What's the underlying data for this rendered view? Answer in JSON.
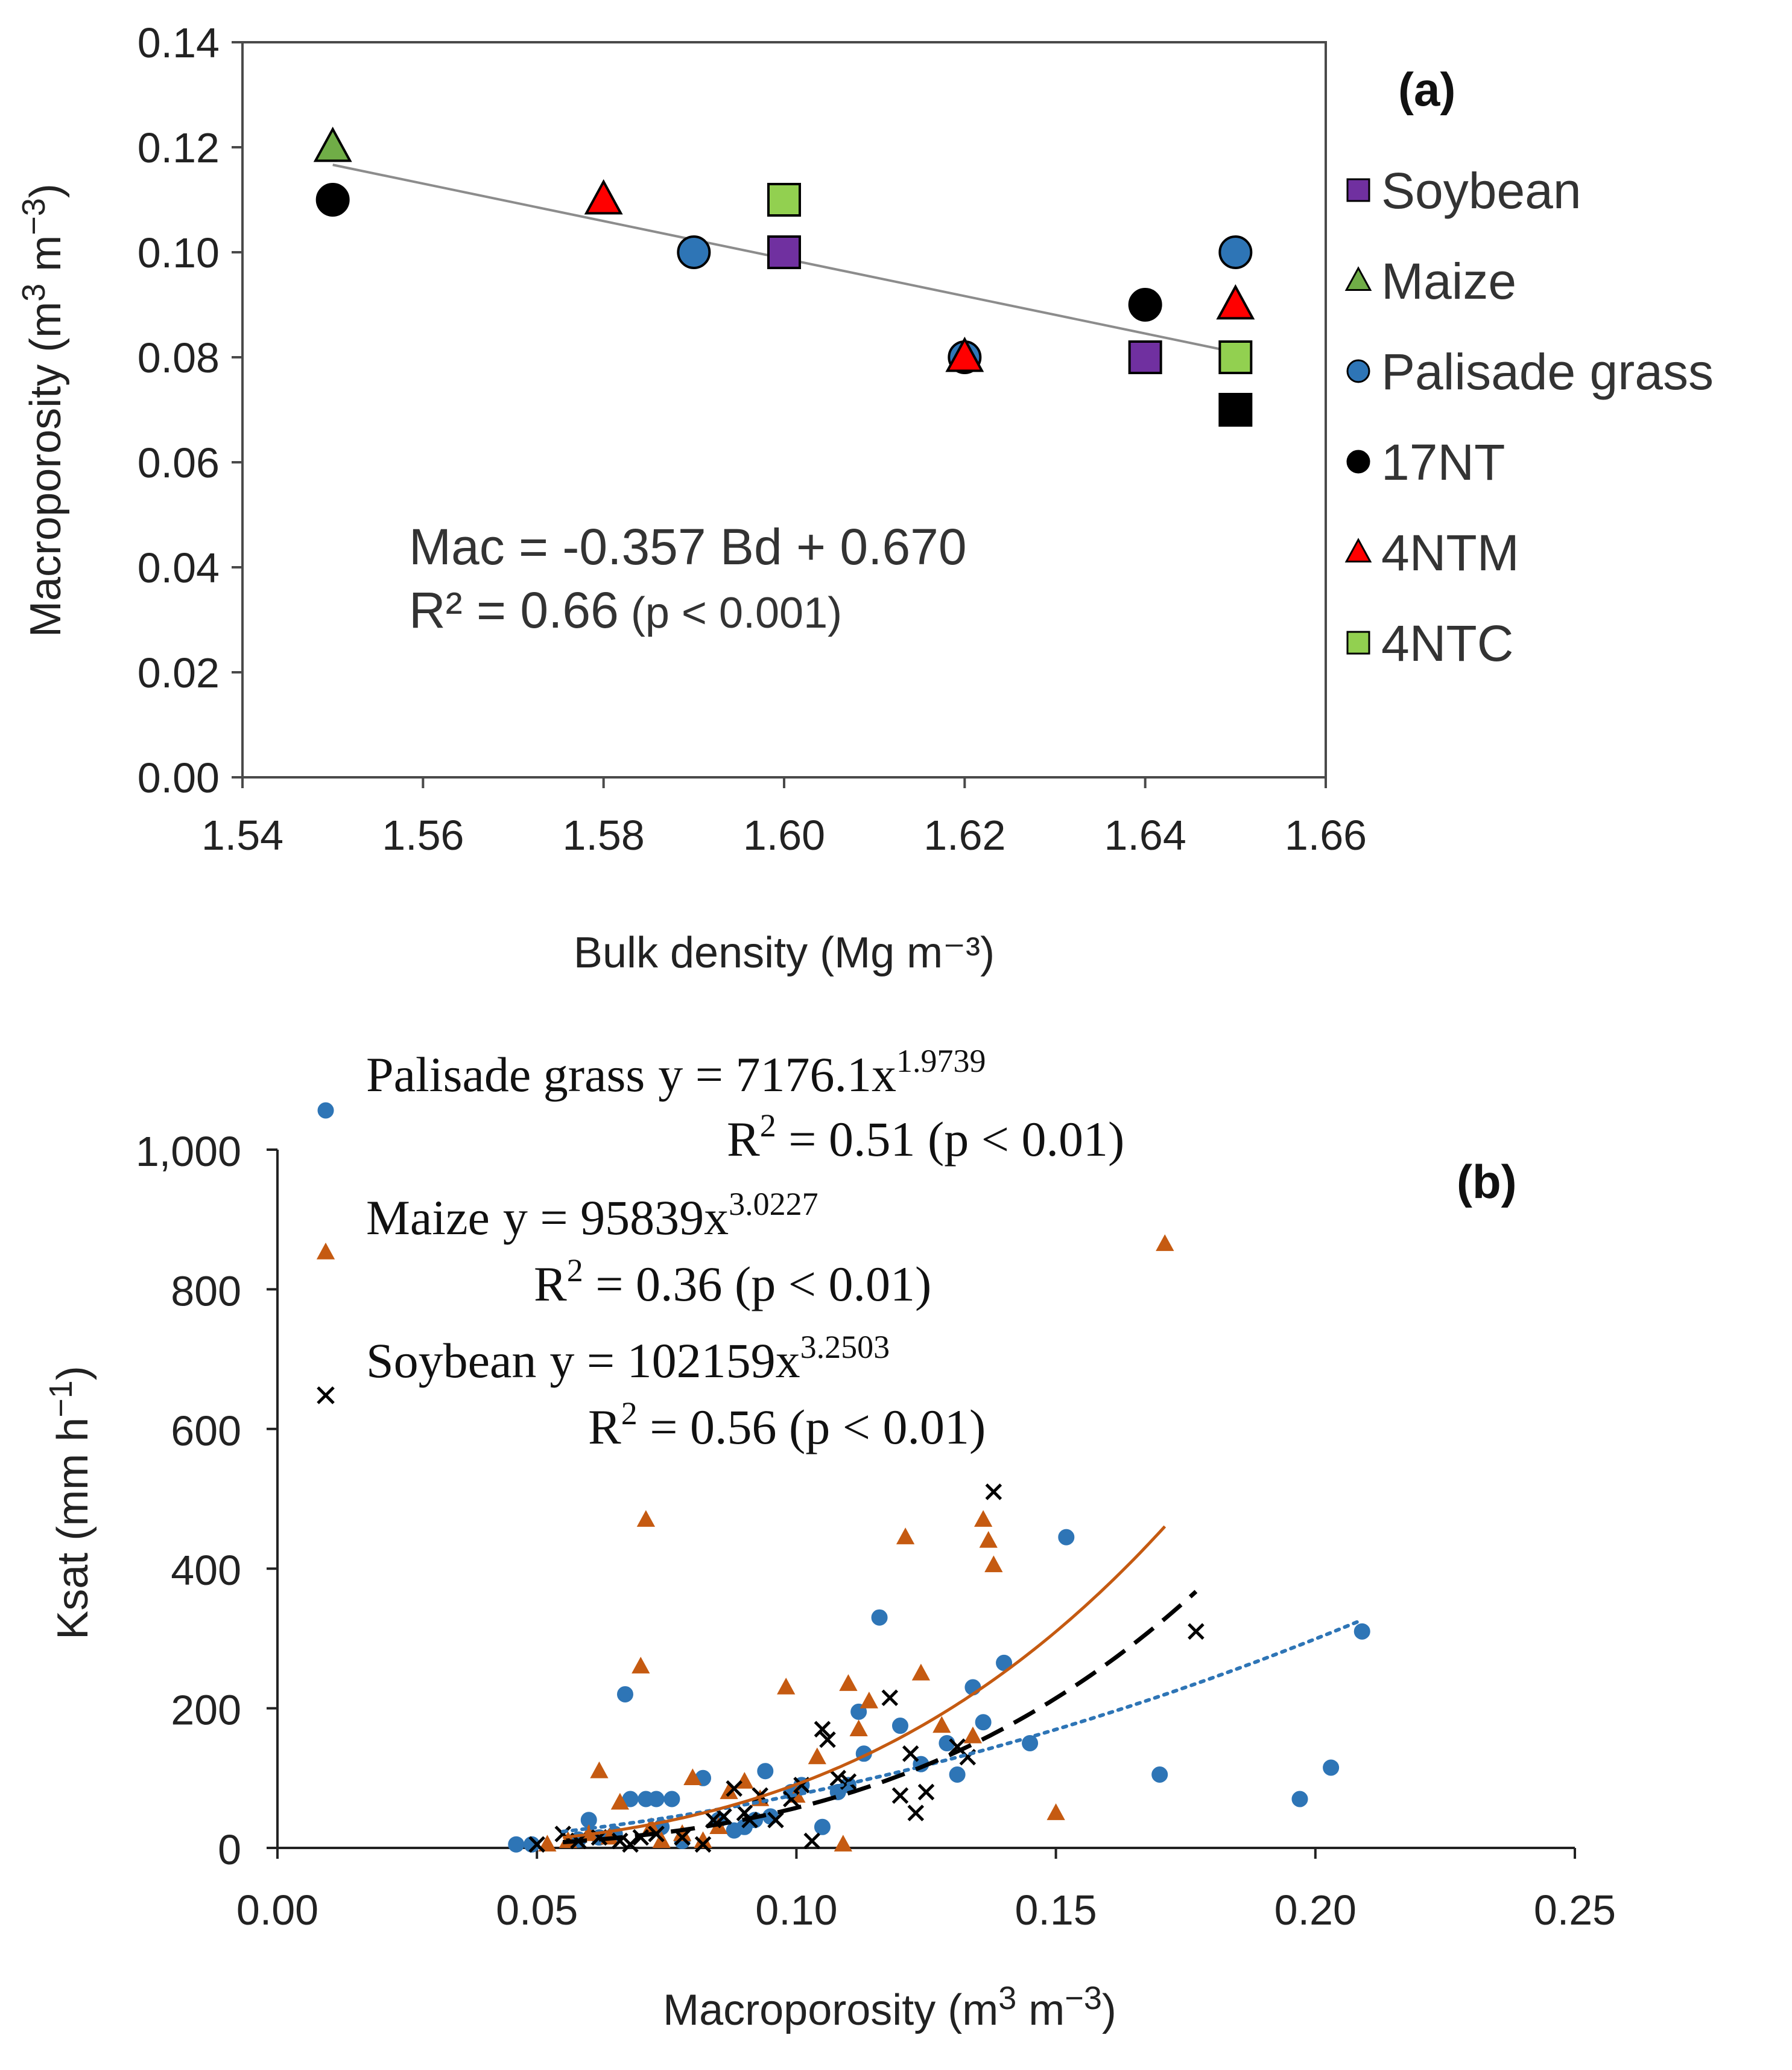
{
  "chart_data": [
    {
      "type": "scatter",
      "panel_label": "(a)",
      "xlabel": "Bulk density (Mg m⁻³)",
      "ylabel_main": "Macroporosity (m",
      "ylabel_sup1": "3",
      "ylabel_mid": " m",
      "ylabel_sup2": "−3",
      "ylabel_end": ")",
      "xlim": [
        1.54,
        1.66
      ],
      "ylim": [
        0.0,
        0.14
      ],
      "xticks": [
        "1.54",
        "1.56",
        "1.58",
        "1.60",
        "1.62",
        "1.64",
        "1.66"
      ],
      "yticks": [
        "0.00",
        "0.02",
        "0.04",
        "0.06",
        "0.08",
        "0.10",
        "0.12",
        "0.14"
      ],
      "legend_position": "right",
      "series": [
        {
          "name": "Soybean",
          "marker": "square",
          "color": "#7030A0",
          "points": [
            [
              1.6,
              0.1
            ],
            [
              1.64,
              0.08
            ]
          ]
        },
        {
          "name": "Maize",
          "marker": "triangle",
          "color": "#70AD47",
          "points": [
            [
              1.55,
              0.12
            ]
          ]
        },
        {
          "name": "Palisade grass",
          "marker": "circle",
          "color": "#2E75B6",
          "points": [
            [
              1.59,
              0.1
            ],
            [
              1.62,
              0.08
            ],
            [
              1.65,
              0.1
            ]
          ]
        },
        {
          "name": "17NT",
          "marker": "circle",
          "color": "#000000",
          "points": [
            [
              1.55,
              0.11
            ],
            [
              1.64,
              0.09
            ]
          ]
        },
        {
          "name": "4NTM",
          "marker": "triangle",
          "color": "#FF0000",
          "points": [
            [
              1.58,
              0.11
            ],
            [
              1.62,
              0.08
            ],
            [
              1.65,
              0.09
            ]
          ]
        },
        {
          "name": "4NTC",
          "marker": "square",
          "color": "#92D050",
          "points": [
            [
              1.6,
              0.11
            ],
            [
              1.65,
              0.08
            ]
          ]
        }
      ],
      "extra_points": [
        {
          "marker": "square",
          "color": "#000000",
          "x": 1.65,
          "y": 0.07
        }
      ],
      "trendline": {
        "slope": -0.357,
        "intercept": 0.67,
        "x_range": [
          1.55,
          1.65
        ],
        "color": "#808080"
      },
      "equation_line1": "Mac = -0.357 Bd + 0.670",
      "equation_line2a": "R² = 0.66",
      "equation_line2b": " (p < 0.001)"
    },
    {
      "type": "scatter",
      "panel_label": "(b)",
      "xlabel_main": "Macroporosity (m",
      "xlabel_sup1": "3",
      "xlabel_mid": " m",
      "xlabel_sup2": "−3",
      "xlabel_end": ")",
      "ylabel_main": "Ksat (mm h",
      "ylabel_sup": "−1",
      "ylabel_end": ")",
      "xlim": [
        0.0,
        0.25
      ],
      "ylim": [
        0,
        1000
      ],
      "xticks": [
        "0.00",
        "0.05",
        "0.10",
        "0.15",
        "0.20",
        "0.25"
      ],
      "yticks": [
        "0",
        "200",
        "400",
        "600",
        "800",
        "1,000"
      ],
      "legend_position": "top-left",
      "series": [
        {
          "name": "Palisade grass",
          "marker": "circle",
          "color": "#2E75B6",
          "fit": {
            "a": 7176.1,
            "b": 1.9739,
            "x_range": [
              0.055,
              0.209
            ],
            "style": "dotted"
          },
          "equation": "y = 7176.1x",
          "exponent": "1.9739",
          "r2_label": "R",
          "r2_sup": "2",
          "r2_text": " = 0.51 (p < 0.01)",
          "points": [
            [
              0.046,
              5
            ],
            [
              0.049,
              5
            ],
            [
              0.058,
              12
            ],
            [
              0.06,
              40
            ],
            [
              0.062,
              15
            ],
            [
              0.065,
              20
            ],
            [
              0.067,
              220
            ],
            [
              0.068,
              70
            ],
            [
              0.071,
              70
            ],
            [
              0.073,
              70
            ],
            [
              0.074,
              30
            ],
            [
              0.076,
              70
            ],
            [
              0.078,
              10
            ],
            [
              0.082,
              100
            ],
            [
              0.085,
              40
            ],
            [
              0.088,
              25
            ],
            [
              0.09,
              30
            ],
            [
              0.092,
              40
            ],
            [
              0.094,
              110
            ],
            [
              0.095,
              45
            ],
            [
              0.099,
              80
            ],
            [
              0.101,
              90
            ],
            [
              0.105,
              30
            ],
            [
              0.108,
              80
            ],
            [
              0.11,
              90
            ],
            [
              0.112,
              195
            ],
            [
              0.113,
              135
            ],
            [
              0.116,
              330
            ],
            [
              0.12,
              175
            ],
            [
              0.124,
              120
            ],
            [
              0.129,
              150
            ],
            [
              0.131,
              105
            ],
            [
              0.134,
              230
            ],
            [
              0.136,
              180
            ],
            [
              0.14,
              265
            ],
            [
              0.145,
              150
            ],
            [
              0.152,
              445
            ],
            [
              0.17,
              105
            ],
            [
              0.197,
              70
            ],
            [
              0.203,
              115
            ],
            [
              0.209,
              310
            ]
          ]
        },
        {
          "name": "Maize",
          "marker": "triangle",
          "color": "#C55A11",
          "fit": {
            "a": 95839,
            "b": 3.0227,
            "x_range": [
              0.055,
              0.171
            ],
            "style": "solid"
          },
          "equation": "y = 95839x",
          "exponent": "3.0227",
          "r2_label": "R",
          "r2_sup": "2",
          "r2_text": " = 0.36 (p < 0.01)",
          "points": [
            [
              0.052,
              5
            ],
            [
              0.056,
              10
            ],
            [
              0.06,
              20
            ],
            [
              0.062,
              110
            ],
            [
              0.064,
              15
            ],
            [
              0.066,
              65
            ],
            [
              0.07,
              260
            ],
            [
              0.071,
              470
            ],
            [
              0.072,
              30
            ],
            [
              0.074,
              10
            ],
            [
              0.078,
              20
            ],
            [
              0.08,
              100
            ],
            [
              0.082,
              10
            ],
            [
              0.085,
              30
            ],
            [
              0.087,
              80
            ],
            [
              0.09,
              95
            ],
            [
              0.093,
              70
            ],
            [
              0.098,
              230
            ],
            [
              0.1,
              75
            ],
            [
              0.104,
              130
            ],
            [
              0.109,
              5
            ],
            [
              0.11,
              235
            ],
            [
              0.112,
              170
            ],
            [
              0.114,
              210
            ],
            [
              0.121,
              445
            ],
            [
              0.124,
              250
            ],
            [
              0.128,
              175
            ],
            [
              0.134,
              160
            ],
            [
              0.136,
              470
            ],
            [
              0.137,
              440
            ],
            [
              0.138,
              405
            ],
            [
              0.15,
              50
            ],
            [
              0.171,
              865
            ]
          ]
        },
        {
          "name": "Soybean",
          "marker": "x",
          "color": "#000000",
          "fit": {
            "a": 102159,
            "b": 3.2503,
            "x_range": [
              0.055,
              0.177
            ],
            "style": "dashed"
          },
          "equation": "y = 102159x",
          "exponent": "3.2503",
          "r2_label": "R",
          "r2_sup": "2",
          "r2_text": " = 0.56 (p < 0.01)",
          "points": [
            [
              0.05,
              5
            ],
            [
              0.055,
              20
            ],
            [
              0.058,
              10
            ],
            [
              0.062,
              15
            ],
            [
              0.066,
              10
            ],
            [
              0.068,
              5
            ],
            [
              0.07,
              15
            ],
            [
              0.073,
              20
            ],
            [
              0.078,
              15
            ],
            [
              0.082,
              5
            ],
            [
              0.084,
              40
            ],
            [
              0.086,
              45
            ],
            [
              0.088,
              85
            ],
            [
              0.09,
              50
            ],
            [
              0.091,
              40
            ],
            [
              0.093,
              75
            ],
            [
              0.096,
              40
            ],
            [
              0.099,
              70
            ],
            [
              0.101,
              90
            ],
            [
              0.103,
              10
            ],
            [
              0.105,
              170
            ],
            [
              0.106,
              155
            ],
            [
              0.108,
              100
            ],
            [
              0.11,
              95
            ],
            [
              0.118,
              215
            ],
            [
              0.12,
              75
            ],
            [
              0.122,
              135
            ],
            [
              0.123,
              50
            ],
            [
              0.125,
              80
            ],
            [
              0.131,
              145
            ],
            [
              0.133,
              130
            ],
            [
              0.138,
              510
            ],
            [
              0.177,
              310
            ]
          ]
        }
      ]
    }
  ]
}
